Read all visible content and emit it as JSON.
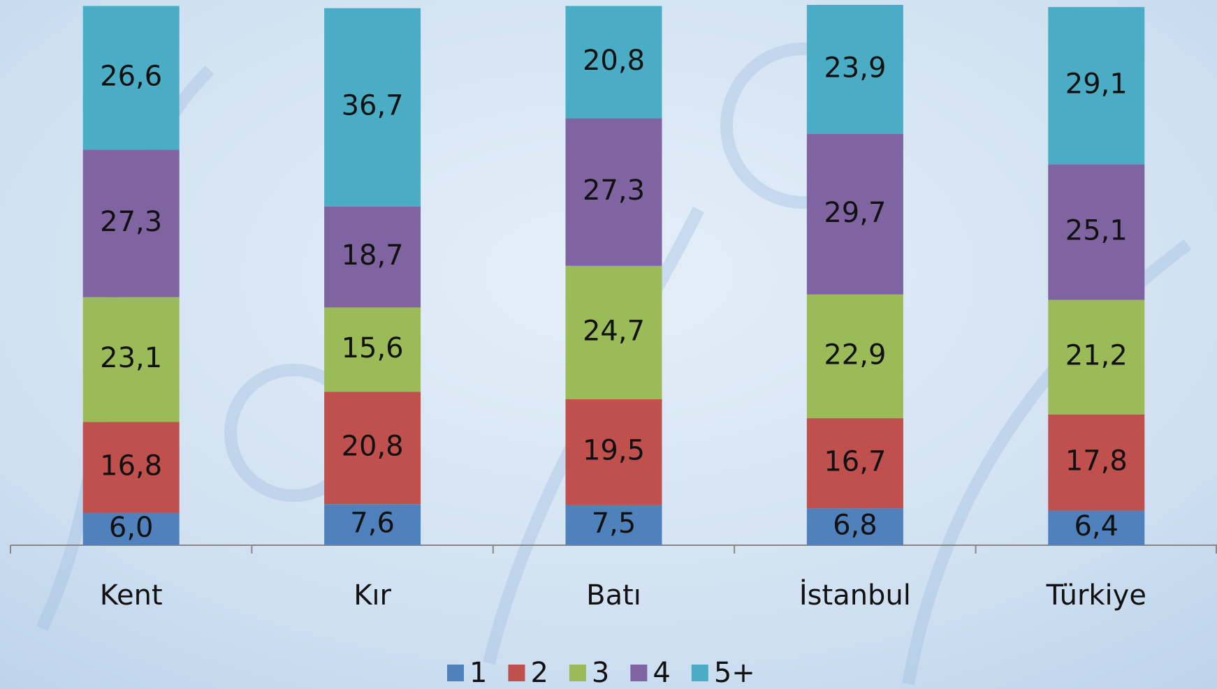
{
  "chart_data": {
    "type": "stacked-bar",
    "categories": [
      "Kent",
      "Kır",
      "Batı",
      "İstanbul",
      "Türkiye"
    ],
    "series": [
      {
        "name": "1",
        "color": "#4f81bd",
        "values": [
          6.0,
          7.6,
          7.5,
          6.8,
          6.4
        ],
        "value_labels": [
          "6,0",
          "7,6",
          "7,5",
          "6,8",
          "6,4"
        ]
      },
      {
        "name": "2",
        "color": "#c0504d",
        "values": [
          16.8,
          20.8,
          19.5,
          16.7,
          17.8
        ],
        "value_labels": [
          "16,8",
          "20,8",
          "19,5",
          "16,7",
          "17,8"
        ]
      },
      {
        "name": "3",
        "color": "#9bbb59",
        "values": [
          23.1,
          15.6,
          24.7,
          22.9,
          21.2
        ],
        "value_labels": [
          "23,1",
          "15,6",
          "24,7",
          "22,9",
          "21,2"
        ]
      },
      {
        "name": "4",
        "color": "#8064a2",
        "values": [
          27.3,
          18.7,
          27.3,
          29.7,
          25.1
        ],
        "value_labels": [
          "27,3",
          "18,7",
          "27,3",
          "29,7",
          "25,1"
        ]
      },
      {
        "name": "5+",
        "color": "#4bacc6",
        "values": [
          26.6,
          36.7,
          20.8,
          23.9,
          29.1
        ],
        "value_labels": [
          "26,6",
          "36,7",
          "20,8",
          "23,9",
          "29,1"
        ]
      }
    ],
    "ylim": [
      0,
      100
    ]
  }
}
